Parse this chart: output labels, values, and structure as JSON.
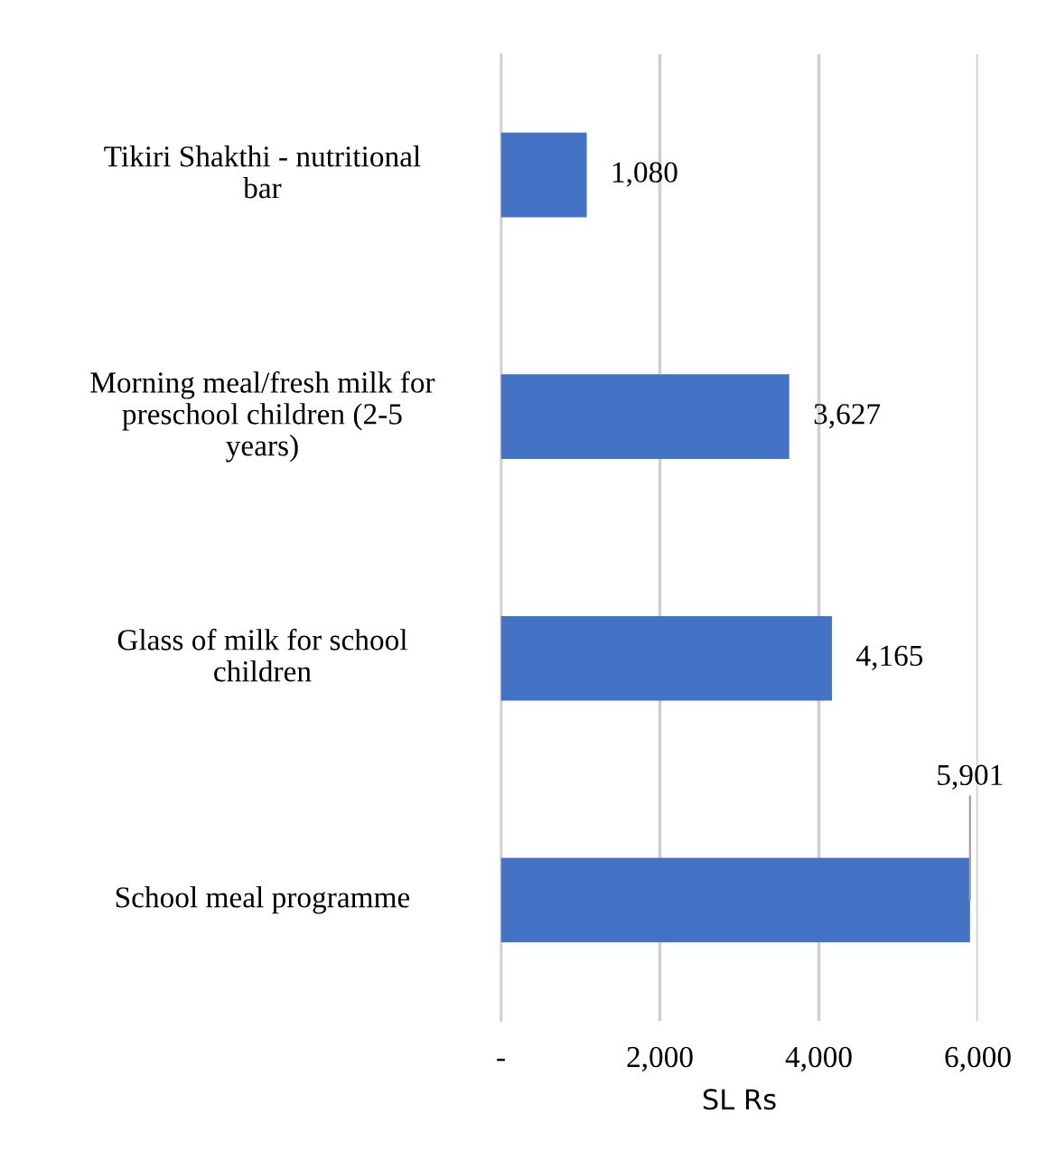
{
  "chart_data": {
    "type": "bar",
    "orientation": "horizontal",
    "categories": [
      "Tikiri Shakthi - nutritional\nbar",
      "Morning meal/fresh milk for\npreschool children (2-5\nyears)",
      "Glass of milk for school\nchildren",
      "School meal programme"
    ],
    "values": [
      1080,
      3627,
      4165,
      5901
    ],
    "color": "#4472c4",
    "value_labels": [
      "1,080",
      "3,627",
      "4,165",
      "5,901"
    ],
    "xlim": [
      0,
      6000
    ],
    "xticks": [
      {
        "value": 0,
        "label": "-"
      },
      {
        "value": 2000,
        "label": "2,000"
      },
      {
        "value": 4000,
        "label": "4,000"
      },
      {
        "value": 6000,
        "label": "6,000"
      }
    ],
    "xlabel": "SL Rs",
    "grid": "x"
  }
}
